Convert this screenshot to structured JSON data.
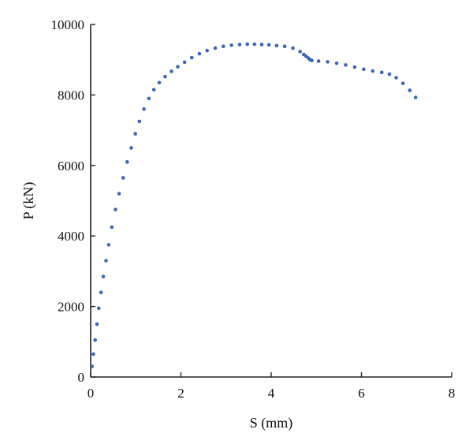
{
  "chart_data": {
    "type": "scatter",
    "title": "",
    "xlabel": "S (mm)",
    "ylabel": "P (kN)",
    "xlim": [
      0,
      8
    ],
    "ylim": [
      0,
      10000
    ],
    "xticks": [
      0,
      2,
      4,
      6,
      8
    ],
    "yticks": [
      0,
      2000,
      4000,
      6000,
      8000,
      10000
    ],
    "grid": false,
    "legend": "none",
    "marker_color": "#3a66b8",
    "series": [
      {
        "x": [
          0.03,
          0.06,
          0.1,
          0.14,
          0.18,
          0.23,
          0.28,
          0.34,
          0.4,
          0.47,
          0.55,
          0.63,
          0.72,
          0.81,
          0.9,
          0.99,
          1.08,
          1.18,
          1.29,
          1.4,
          1.52,
          1.65,
          1.79,
          1.93,
          2.08,
          2.24,
          2.41,
          2.58,
          2.76,
          2.94,
          3.12,
          3.3,
          3.47,
          3.63,
          3.79,
          3.95,
          4.12,
          4.3,
          4.48,
          4.64,
          4.72,
          4.77,
          4.82,
          4.86,
          4.9,
          5.05,
          5.25,
          5.45,
          5.65,
          5.85,
          6.05,
          6.25,
          6.45,
          6.62,
          6.77,
          6.92,
          7.07,
          7.2
        ],
        "y": [
          300,
          650,
          1050,
          1500,
          1950,
          2400,
          2850,
          3300,
          3750,
          4250,
          4750,
          5200,
          5650,
          6100,
          6500,
          6900,
          7250,
          7600,
          7900,
          8150,
          8350,
          8520,
          8670,
          8800,
          8930,
          9060,
          9170,
          9260,
          9330,
          9380,
          9410,
          9430,
          9440,
          9440,
          9430,
          9420,
          9400,
          9380,
          9330,
          9230,
          9150,
          9100,
          9050,
          9000,
          8980,
          8960,
          8940,
          8900,
          8850,
          8790,
          8730,
          8680,
          8640,
          8590,
          8490,
          8330,
          8130,
          7930
        ]
      }
    ]
  }
}
